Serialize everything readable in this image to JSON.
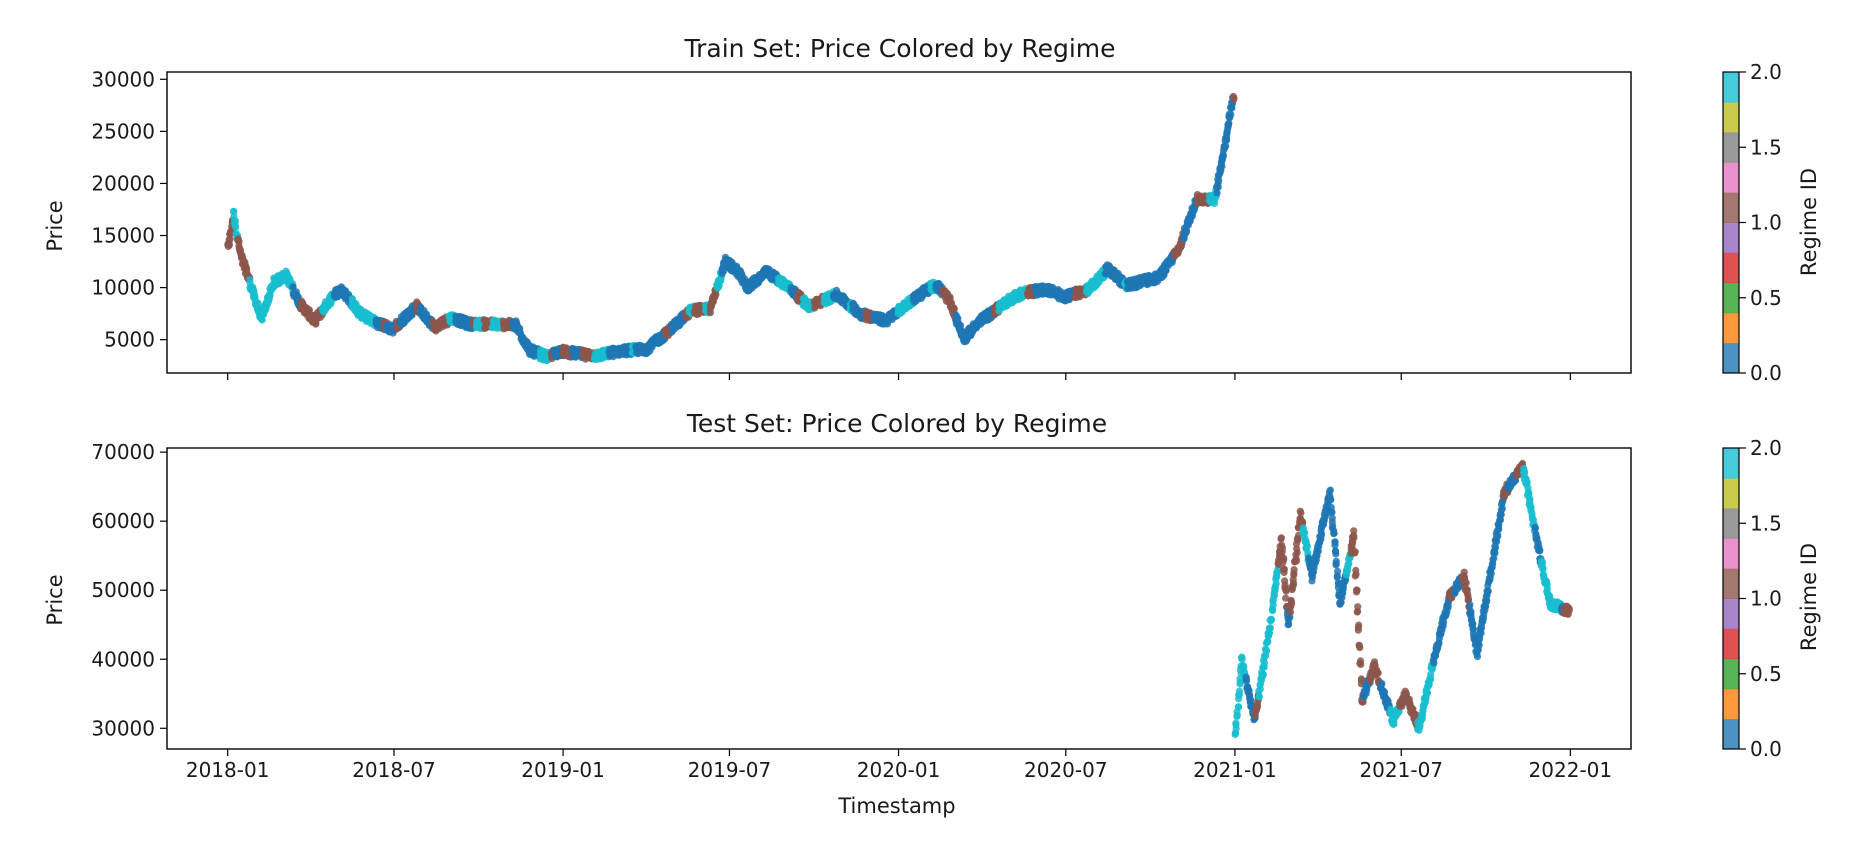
{
  "chart_data": [
    {
      "type": "scatter",
      "title": "Train Set: Price Colored by Regime",
      "xlabel": "",
      "ylabel": "Price",
      "yticks": [
        5000,
        10000,
        15000,
        20000,
        25000,
        30000
      ],
      "ylim": [
        1800,
        30700
      ],
      "x_tick_labels": [
        "2018-01",
        "2018-07",
        "2019-01",
        "2019-07",
        "2020-01",
        "2020-07",
        "2021-01",
        "2021-07",
        "2022-01"
      ],
      "x_tick_labels_visible": false,
      "xlim": [
        "2017-10-27",
        "2022-03-08"
      ],
      "colorbar": {
        "label": "Regime ID",
        "ticks": [
          "0.0",
          "0.5",
          "1.0",
          "1.5",
          "2.0"
        ]
      },
      "regime_colors": [
        "#1f77b4",
        "#8c564b",
        "#17becf"
      ],
      "price_path": [
        [
          "2018-01-01",
          13800
        ],
        [
          "2018-01-07",
          17000
        ],
        [
          "2018-01-15",
          13000
        ],
        [
          "2018-01-23",
          11000
        ],
        [
          "2018-02-06",
          7000
        ],
        [
          "2018-02-20",
          10500
        ],
        [
          "2018-03-05",
          11200
        ],
        [
          "2018-03-20",
          8500
        ],
        [
          "2018-04-05",
          6800
        ],
        [
          "2018-04-25",
          9200
        ],
        [
          "2018-05-05",
          9800
        ],
        [
          "2018-05-25",
          7500
        ],
        [
          "2018-06-10",
          6700
        ],
        [
          "2018-06-29",
          6000
        ],
        [
          "2018-07-25",
          8200
        ],
        [
          "2018-08-14",
          6200
        ],
        [
          "2018-09-01",
          7100
        ],
        [
          "2018-09-20",
          6500
        ],
        [
          "2018-10-15",
          6500
        ],
        [
          "2018-11-10",
          6400
        ],
        [
          "2018-11-25",
          4000
        ],
        [
          "2018-12-15",
          3300
        ],
        [
          "2018-12-28",
          3900
        ],
        [
          "2019-01-20",
          3600
        ],
        [
          "2019-02-07",
          3450
        ],
        [
          "2019-03-01",
          3900
        ],
        [
          "2019-04-01",
          4100
        ],
        [
          "2019-04-20",
          5400
        ],
        [
          "2019-05-20",
          7800
        ],
        [
          "2019-06-10",
          8000
        ],
        [
          "2019-06-26",
          12500
        ],
        [
          "2019-07-10",
          11500
        ],
        [
          "2019-07-20",
          10000
        ],
        [
          "2019-08-10",
          11500
        ],
        [
          "2019-09-01",
          10200
        ],
        [
          "2019-09-25",
          8200
        ],
        [
          "2019-10-25",
          9300
        ],
        [
          "2019-11-20",
          7500
        ],
        [
          "2019-12-18",
          6800
        ],
        [
          "2020-01-15",
          8800
        ],
        [
          "2020-02-10",
          10300
        ],
        [
          "2020-02-25",
          8800
        ],
        [
          "2020-03-12",
          5000
        ],
        [
          "2020-03-25",
          6500
        ],
        [
          "2020-04-30",
          8800
        ],
        [
          "2020-05-15",
          9500
        ],
        [
          "2020-06-10",
          9800
        ],
        [
          "2020-06-30",
          9100
        ],
        [
          "2020-07-25",
          9800
        ],
        [
          "2020-08-15",
          11800
        ],
        [
          "2020-09-05",
          10200
        ],
        [
          "2020-10-10",
          11000
        ],
        [
          "2020-11-01",
          13800
        ],
        [
          "2020-11-20",
          18500
        ],
        [
          "2020-12-10",
          18500
        ],
        [
          "2020-12-20",
          23500
        ],
        [
          "2020-12-31",
          29000
        ]
      ]
    },
    {
      "type": "scatter",
      "title": "Test Set: Price Colored by Regime",
      "xlabel": "Timestamp",
      "ylabel": "Price",
      "yticks": [
        30000,
        40000,
        50000,
        60000,
        70000
      ],
      "ylim": [
        27000,
        70600
      ],
      "x_tick_labels": [
        "2018-01",
        "2018-07",
        "2019-01",
        "2019-07",
        "2020-01",
        "2020-07",
        "2021-01",
        "2021-07",
        "2022-01"
      ],
      "xlim": [
        "2017-10-27",
        "2022-03-08"
      ],
      "colorbar": {
        "label": "Regime ID",
        "ticks": [
          "0.0",
          "0.5",
          "1.0",
          "1.5",
          "2.0"
        ]
      },
      "regime_colors": [
        "#1f77b4",
        "#8c564b",
        "#17becf"
      ],
      "price_path": [
        [
          "2021-01-01",
          29000
        ],
        [
          "2021-01-08",
          40000
        ],
        [
          "2021-01-22",
          31000
        ],
        [
          "2021-02-08",
          45000
        ],
        [
          "2021-02-20",
          57000
        ],
        [
          "2021-02-28",
          45000
        ],
        [
          "2021-03-13",
          61000
        ],
        [
          "2021-03-25",
          52000
        ],
        [
          "2021-04-14",
          64000
        ],
        [
          "2021-04-25",
          48000
        ],
        [
          "2021-05-10",
          58000
        ],
        [
          "2021-05-19",
          34000
        ],
        [
          "2021-06-01",
          39000
        ],
        [
          "2021-06-22",
          31000
        ],
        [
          "2021-07-05",
          35000
        ],
        [
          "2021-07-20",
          30000
        ],
        [
          "2021-08-05",
          40000
        ],
        [
          "2021-08-22",
          49000
        ],
        [
          "2021-09-07",
          52000
        ],
        [
          "2021-09-21",
          41000
        ],
        [
          "2021-10-05",
          52000
        ],
        [
          "2021-10-20",
          64000
        ],
        [
          "2021-11-10",
          68000
        ],
        [
          "2021-11-25",
          57000
        ],
        [
          "2021-12-10",
          48000
        ],
        [
          "2021-12-31",
          47000
        ]
      ]
    }
  ]
}
